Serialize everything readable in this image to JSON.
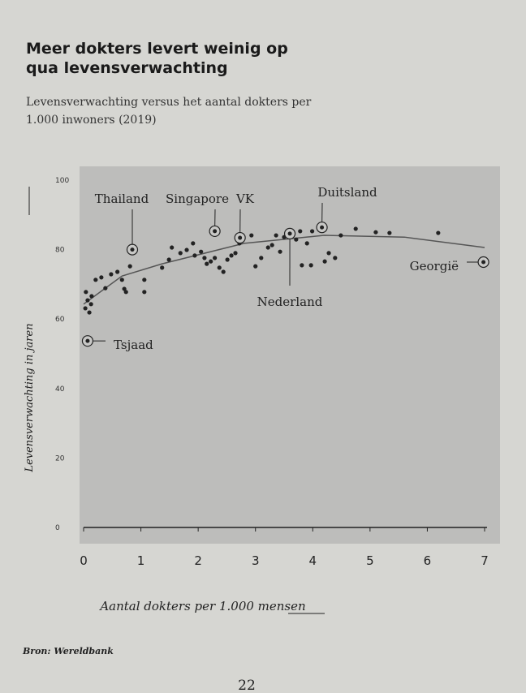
{
  "chart_data": {
    "type": "scatter",
    "title": "Meer dokters levert weinig op qua levensverwachting",
    "subtitle": "Levensverwachting versus het aantal dokters per 1.000 inwoners (2019)",
    "x_label": "Aantal dokters per 1.000 mensen",
    "y_label": "Levensverwachting in jaren",
    "source": "Bron: Wereldbank",
    "page_number": "22",
    "color": "#222222",
    "xlim": [
      0,
      7
    ],
    "xticks": [
      0,
      1,
      2,
      3,
      4,
      5,
      6,
      7
    ],
    "ylim": [
      0,
      100
    ],
    "yticks": [
      0,
      20,
      40,
      60,
      80,
      100
    ],
    "x": [
      0.04,
      0.07,
      0.1,
      0.13,
      0.03,
      0.14,
      0.21,
      0.31,
      0.38,
      0.48,
      0.59,
      0.67,
      0.74,
      0.71,
      0.81,
      1.06,
      1.06,
      1.37,
      1.49,
      1.54,
      1.69,
      1.8,
      1.91,
      1.94,
      2.05,
      2.11,
      2.15,
      2.22,
      2.29,
      2.37,
      2.44,
      2.51,
      2.58,
      2.65,
      2.72,
      2.93,
      3.0,
      3.1,
      3.22,
      3.29,
      3.36,
      3.43,
      3.5,
      3.71,
      3.78,
      3.81,
      3.9,
      3.97,
      3.99,
      4.21,
      4.28,
      4.39,
      4.49,
      4.75,
      5.1,
      5.34,
      6.19
    ],
    "values": [
      67.8,
      65.4,
      61.9,
      64.3,
      63.1,
      66.6,
      71.3,
      72.0,
      68.9,
      72.9,
      73.6,
      71.3,
      67.8,
      68.7,
      75.2,
      67.8,
      71.3,
      74.8,
      77.1,
      80.6,
      79.0,
      79.9,
      81.8,
      78.3,
      79.4,
      77.6,
      75.9,
      76.6,
      77.6,
      74.8,
      73.6,
      77.1,
      78.3,
      79.0,
      81.8,
      84.1,
      75.2,
      77.6,
      80.6,
      81.3,
      84.1,
      79.4,
      83.6,
      82.9,
      85.3,
      75.5,
      81.8,
      75.5,
      85.3,
      76.6,
      79.0,
      77.6,
      84.1,
      86.0,
      85.0,
      84.8,
      84.8
    ],
    "highlights": [
      {
        "label": "Thailand",
        "x": 0.85,
        "y": 80
      },
      {
        "label": "Singapore",
        "x": 2.29,
        "y": 85.3
      },
      {
        "label": "VK",
        "x": 2.73,
        "y": 83.4
      },
      {
        "label": "Duitsland",
        "x": 4.16,
        "y": 86.4
      },
      {
        "label": "Nederland",
        "x": 3.6,
        "y": 84.6
      },
      {
        "label": "Georgië",
        "x": 6.98,
        "y": 76.4
      },
      {
        "label": "Tsjaad",
        "x": 0.07,
        "y": 53.7
      }
    ],
    "trend": {
      "x": [
        0,
        0.67,
        1.37,
        2.8,
        4.2,
        5.6,
        7
      ],
      "values": [
        64.3,
        72.4,
        75.9,
        81.8,
        84.1,
        83.6,
        80.6
      ]
    }
  }
}
